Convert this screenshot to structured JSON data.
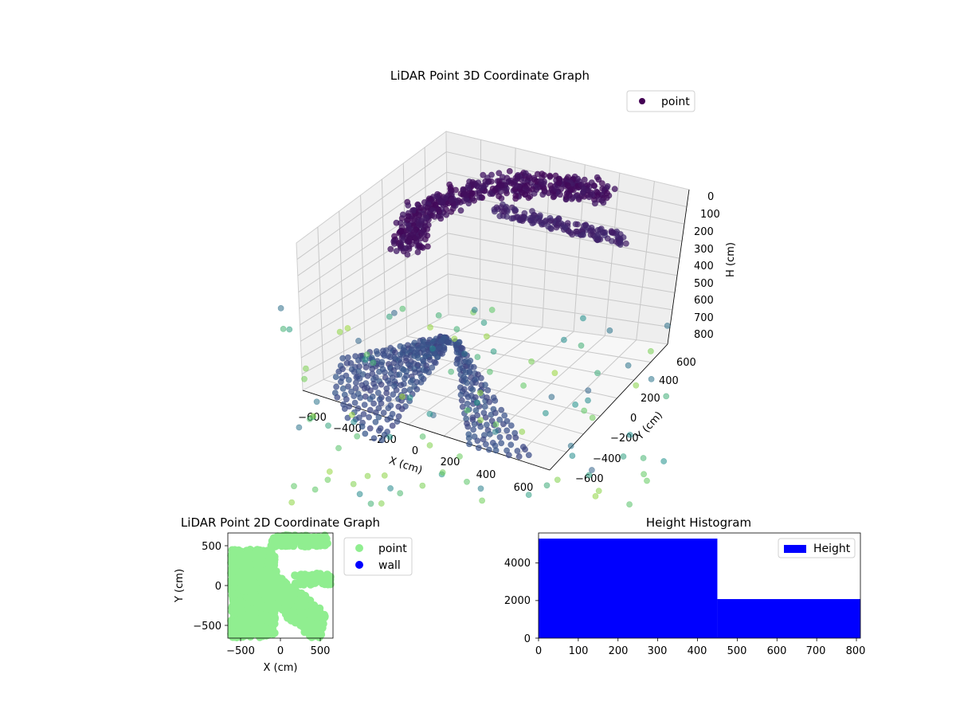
{
  "chart_data": [
    {
      "type": "scatter",
      "projection": "3d",
      "title": "LiDAR Point 3D Coordinate Graph",
      "xlabel": "X (cm)",
      "ylabel": "Y (cm)",
      "zlabel": "H (cm)",
      "xlim": [
        -700,
        700
      ],
      "ylim": [
        -700,
        700
      ],
      "zlim": [
        800,
        0
      ],
      "xticks": [
        "−600",
        "−400",
        "−200",
        "0",
        "200",
        "400",
        "600"
      ],
      "yticks": [
        "−600",
        "−400",
        "−200",
        "0",
        "200",
        "400",
        "600"
      ],
      "zticks": [
        "0",
        "100",
        "200",
        "300",
        "400",
        "500",
        "600",
        "700",
        "800"
      ],
      "legend": [
        "point"
      ],
      "legend_position": "top-right",
      "colormap": "viridis",
      "series": [
        {
          "name": "point",
          "x": [],
          "y": [],
          "h": []
        }
      ]
    },
    {
      "type": "scatter",
      "title": "LiDAR Point 2D Coordinate Graph",
      "xlabel": "X (cm)",
      "ylabel": "Y (cm)",
      "xlim": [
        -650,
        650
      ],
      "ylim": [
        -650,
        650
      ],
      "xticks": [
        "−500",
        "0",
        "500"
      ],
      "yticks": [
        "−500",
        "0",
        "500"
      ],
      "legend_position": "outside-right",
      "series": [
        {
          "name": "point",
          "color": "#90ee90",
          "x": [],
          "y": []
        },
        {
          "name": "wall",
          "color": "#0000ff",
          "x": [],
          "y": []
        }
      ]
    },
    {
      "type": "bar",
      "title": "Height Histogram",
      "bins": [
        [
          0,
          450
        ],
        [
          450,
          810
        ]
      ],
      "values": [
        5300,
        2080
      ],
      "xlim": [
        0,
        810
      ],
      "ylim": [
        0,
        5600
      ],
      "xticks": [
        "0",
        "100",
        "200",
        "300",
        "400",
        "500",
        "600",
        "700",
        "800"
      ],
      "yticks": [
        "0",
        "2000",
        "4000"
      ],
      "legend_position": "top-right",
      "series": [
        {
          "name": "Height",
          "color": "#0000ff"
        }
      ]
    }
  ]
}
